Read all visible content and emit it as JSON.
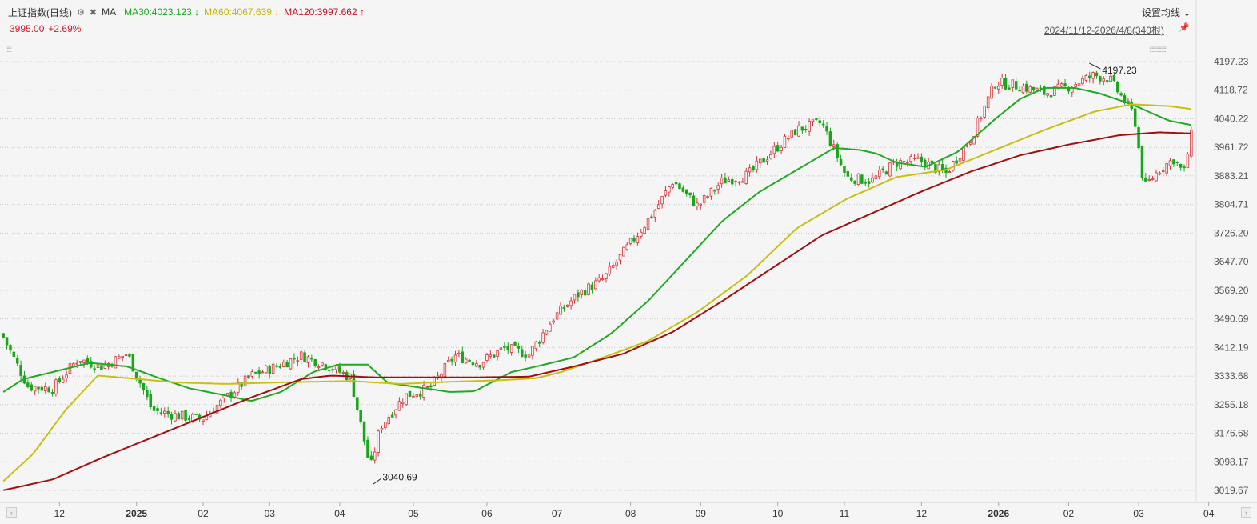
{
  "header": {
    "index_name": "上证指数(日线)",
    "gear_icon": "gear-icon",
    "close_icon": "close-circle-icon",
    "ma_label": "MA",
    "ma30": "MA30:4023.123",
    "ma30_arrow": "↓",
    "ma60": "MA60:4067.639",
    "ma60_arrow": "↓",
    "ma120": "MA120:3997.662",
    "ma120_arrow": "↑",
    "price": "3995.00",
    "change": "+2.69%",
    "settings_label": "设置均线",
    "settings_arrow": "⌄",
    "range_label": "2024/11/12-2026/4/8(340根)",
    "pin_icon": "pin-icon",
    "dots": "⁞⁞⁞⁞",
    "dots_right": "⁞⁞⁞⁞⁞⁞⁞⁞⁞⁞⁞⁞⁞⁞"
  },
  "colors": {
    "up": "#d9343b",
    "down": "#1aa61a",
    "ma30": "#22a822",
    "ma60": "#c8bf12",
    "ma120": "#a01010",
    "grid": "#c8c8c8",
    "background": "#f5f5f5"
  },
  "chart_data": {
    "type": "candlestick",
    "title": "上证指数(日线)",
    "x_ticks": [
      "12",
      "2025",
      "02",
      "03",
      "04",
      "05",
      "06",
      "07",
      "08",
      "09",
      "10",
      "11",
      "12",
      "2026",
      "02",
      "03",
      "04"
    ],
    "y_ticks": [
      4197.23,
      4118.72,
      4040.22,
      3961.72,
      3883.21,
      3804.71,
      3726.2,
      3647.7,
      3569.2,
      3490.69,
      3412.19,
      3333.68,
      3255.18,
      3176.68,
      3098.17,
      3019.67
    ],
    "ylim": [
      3000,
      4215
    ],
    "bars": 340,
    "start_date": "2024/11/12",
    "end_date": "2026/4/8",
    "annotations": [
      {
        "label": "4197.23",
        "type": "max"
      },
      {
        "label": "3040.69",
        "type": "min"
      }
    ],
    "close_anchors": [
      [
        0,
        3440
      ],
      [
        10,
        3305
      ],
      [
        20,
        3300
      ],
      [
        30,
        3380
      ],
      [
        40,
        3360
      ],
      [
        50,
        3395
      ],
      [
        60,
        3240
      ],
      [
        70,
        3225
      ],
      [
        80,
        3215
      ],
      [
        90,
        3275
      ],
      [
        100,
        3335
      ],
      [
        110,
        3360
      ],
      [
        120,
        3390
      ],
      [
        130,
        3365
      ],
      [
        140,
        3330
      ],
      [
        148,
        3080
      ],
      [
        152,
        3195
      ],
      [
        162,
        3280
      ],
      [
        172,
        3300
      ],
      [
        182,
        3390
      ],
      [
        192,
        3370
      ],
      [
        202,
        3410
      ],
      [
        212,
        3395
      ],
      [
        222,
        3495
      ],
      [
        232,
        3560
      ],
      [
        242,
        3600
      ],
      [
        252,
        3690
      ],
      [
        262,
        3780
      ],
      [
        270,
        3870
      ],
      [
        280,
        3800
      ],
      [
        290,
        3870
      ],
      [
        300,
        3885
      ],
      [
        310,
        3950
      ],
      [
        320,
        4010
      ],
      [
        330,
        4030
      ],
      [
        340,
        3880
      ],
      [
        350,
        3870
      ],
      [
        360,
        3920
      ],
      [
        370,
        3925
      ],
      [
        380,
        3890
      ],
      [
        390,
        3985
      ],
      [
        400,
        4140
      ],
      [
        410,
        4130
      ],
      [
        420,
        4110
      ],
      [
        430,
        4130
      ],
      [
        440,
        4160
      ],
      [
        446,
        4150
      ],
      [
        450,
        4110
      ],
      [
        456,
        4050
      ],
      [
        460,
        3850
      ],
      [
        466,
        3900
      ],
      [
        472,
        3930
      ],
      [
        476,
        3890
      ],
      [
        479,
        3995
      ]
    ],
    "series": [
      {
        "name": "MA30",
        "value": 4023.123,
        "anchors": [
          [
            0,
            3290
          ],
          [
            8,
            3325
          ],
          [
            20,
            3345
          ],
          [
            35,
            3370
          ],
          [
            50,
            3360
          ],
          [
            62,
            3330
          ],
          [
            75,
            3300
          ],
          [
            90,
            3280
          ],
          [
            100,
            3265
          ],
          [
            112,
            3290
          ],
          [
            125,
            3345
          ],
          [
            135,
            3365
          ],
          [
            147,
            3365
          ],
          [
            155,
            3315
          ],
          [
            170,
            3300
          ],
          [
            180,
            3290
          ],
          [
            190,
            3292
          ],
          [
            205,
            3345
          ],
          [
            215,
            3360
          ],
          [
            230,
            3385
          ],
          [
            245,
            3450
          ],
          [
            260,
            3540
          ],
          [
            275,
            3650
          ],
          [
            290,
            3760
          ],
          [
            305,
            3840
          ],
          [
            320,
            3900
          ],
          [
            335,
            3960
          ],
          [
            345,
            3955
          ],
          [
            352,
            3945
          ],
          [
            360,
            3920
          ],
          [
            372,
            3908
          ],
          [
            385,
            3950
          ],
          [
            400,
            4040
          ],
          [
            410,
            4095
          ],
          [
            420,
            4125
          ],
          [
            432,
            4125
          ],
          [
            442,
            4110
          ],
          [
            455,
            4080
          ],
          [
            470,
            4035
          ],
          [
            479,
            4023
          ]
        ]
      },
      {
        "name": "MA60",
        "value": 4067.639,
        "anchors": [
          [
            0,
            3045
          ],
          [
            12,
            3120
          ],
          [
            25,
            3240
          ],
          [
            38,
            3335
          ],
          [
            50,
            3328
          ],
          [
            70,
            3316
          ],
          [
            90,
            3312
          ],
          [
            110,
            3316
          ],
          [
            125,
            3318
          ],
          [
            140,
            3320
          ],
          [
            160,
            3312
          ],
          [
            180,
            3318
          ],
          [
            200,
            3322
          ],
          [
            215,
            3328
          ],
          [
            225,
            3345
          ],
          [
            240,
            3380
          ],
          [
            260,
            3430
          ],
          [
            280,
            3510
          ],
          [
            300,
            3610
          ],
          [
            320,
            3740
          ],
          [
            340,
            3820
          ],
          [
            360,
            3880
          ],
          [
            380,
            3900
          ],
          [
            400,
            3955
          ],
          [
            420,
            4010
          ],
          [
            440,
            4060
          ],
          [
            455,
            4080
          ],
          [
            470,
            4075
          ],
          [
            479,
            4067
          ]
        ]
      },
      {
        "name": "MA120",
        "value": 3997.662,
        "anchors": [
          [
            0,
            3020
          ],
          [
            20,
            3050
          ],
          [
            40,
            3110
          ],
          [
            60,
            3165
          ],
          [
            80,
            3220
          ],
          [
            100,
            3275
          ],
          [
            120,
            3325
          ],
          [
            132,
            3335
          ],
          [
            150,
            3330
          ],
          [
            170,
            3330
          ],
          [
            190,
            3330
          ],
          [
            212,
            3332
          ],
          [
            230,
            3360
          ],
          [
            250,
            3395
          ],
          [
            270,
            3455
          ],
          [
            290,
            3540
          ],
          [
            310,
            3630
          ],
          [
            330,
            3720
          ],
          [
            350,
            3780
          ],
          [
            370,
            3840
          ],
          [
            390,
            3895
          ],
          [
            410,
            3940
          ],
          [
            430,
            3970
          ],
          [
            450,
            3995
          ],
          [
            466,
            4003
          ],
          [
            479,
            4000
          ]
        ]
      }
    ]
  },
  "scrollbar": {
    "left_arrow": "‹",
    "right_arrow": "›"
  }
}
